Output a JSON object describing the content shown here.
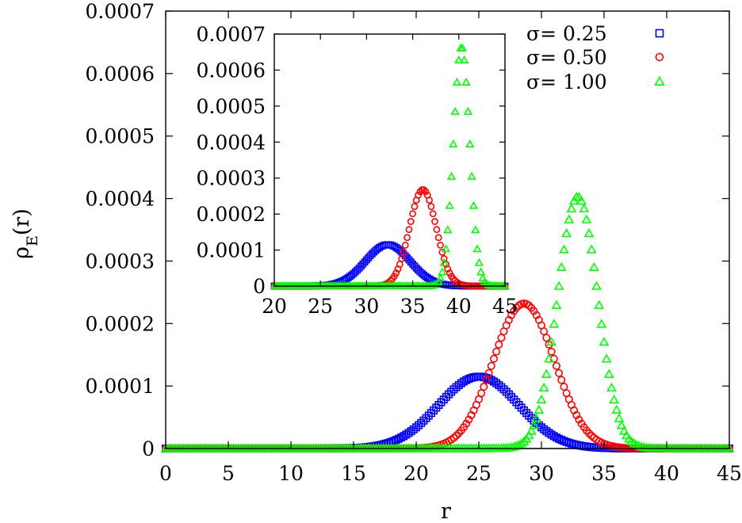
{
  "chart_data": [
    {
      "id": "main",
      "type": "scatter",
      "title": "",
      "xlabel": "r",
      "ylabel_base": "ρ",
      "ylabel_sub": "E",
      "ylabel_tail": "(r)",
      "xlim": [
        0,
        45
      ],
      "ylim": [
        0,
        0.0007
      ],
      "xticks": [
        0,
        5,
        10,
        15,
        20,
        25,
        30,
        35,
        40,
        45
      ],
      "xtick_labels": [
        "0",
        "5",
        "10",
        "15",
        "20",
        "25",
        "30",
        "35",
        "40",
        "45"
      ],
      "yticks": [
        0,
        0.0001,
        0.0002,
        0.0003,
        0.0004,
        0.0005,
        0.0006,
        0.0007
      ],
      "ytick_labels": [
        "0",
        "0.0001",
        "0.0002",
        "0.0003",
        "0.0004",
        "0.0005",
        "0.0006",
        "0.0007"
      ],
      "grid": false,
      "legend_position": "top-right",
      "x_step": 0.2,
      "series": [
        {
          "name": "σ= 0.25",
          "marker": "square",
          "color": "#0000ff",
          "peak_x": 25.0,
          "peak_y": 0.000115,
          "spread": 3.2
        },
        {
          "name": "σ= 0.50",
          "marker": "circle",
          "color": "#ff0000",
          "peak_x": 28.6,
          "peak_y": 0.000232,
          "spread": 2.45
        },
        {
          "name": "σ= 1.00",
          "marker": "triangle",
          "color": "#00ff00",
          "peak_x": 32.9,
          "peak_y": 0.000403,
          "spread": 1.6
        }
      ]
    },
    {
      "id": "inset",
      "type": "scatter",
      "xlim": [
        20,
        45
      ],
      "ylim": [
        0,
        0.0007
      ],
      "xticks": [
        20,
        25,
        30,
        35,
        40,
        45
      ],
      "xtick_labels": [
        "20",
        "25",
        "30",
        "35",
        "40",
        "45"
      ],
      "yticks": [
        0,
        0.0001,
        0.0002,
        0.0003,
        0.0004,
        0.0005,
        0.0006,
        0.0007
      ],
      "ytick_labels": [
        "0",
        "0.0001",
        "0.0002",
        "0.0003",
        "0.0004",
        "0.0005",
        "0.0006",
        "0.0007"
      ],
      "grid": false,
      "x_step": 0.2,
      "series": [
        {
          "name": "σ= 0.25",
          "marker": "square",
          "color": "#0000ff",
          "peak_x": 32.3,
          "peak_y": 0.000115,
          "spread": 2.4
        },
        {
          "name": "σ= 0.50",
          "marker": "circle",
          "color": "#ff0000",
          "peak_x": 36.1,
          "peak_y": 0.000268,
          "spread": 1.45
        },
        {
          "name": "σ= 1.00",
          "marker": "triangle",
          "color": "#00ff00",
          "peak_x": 40.3,
          "peak_y": 0.000665,
          "spread": 0.88
        }
      ]
    }
  ]
}
